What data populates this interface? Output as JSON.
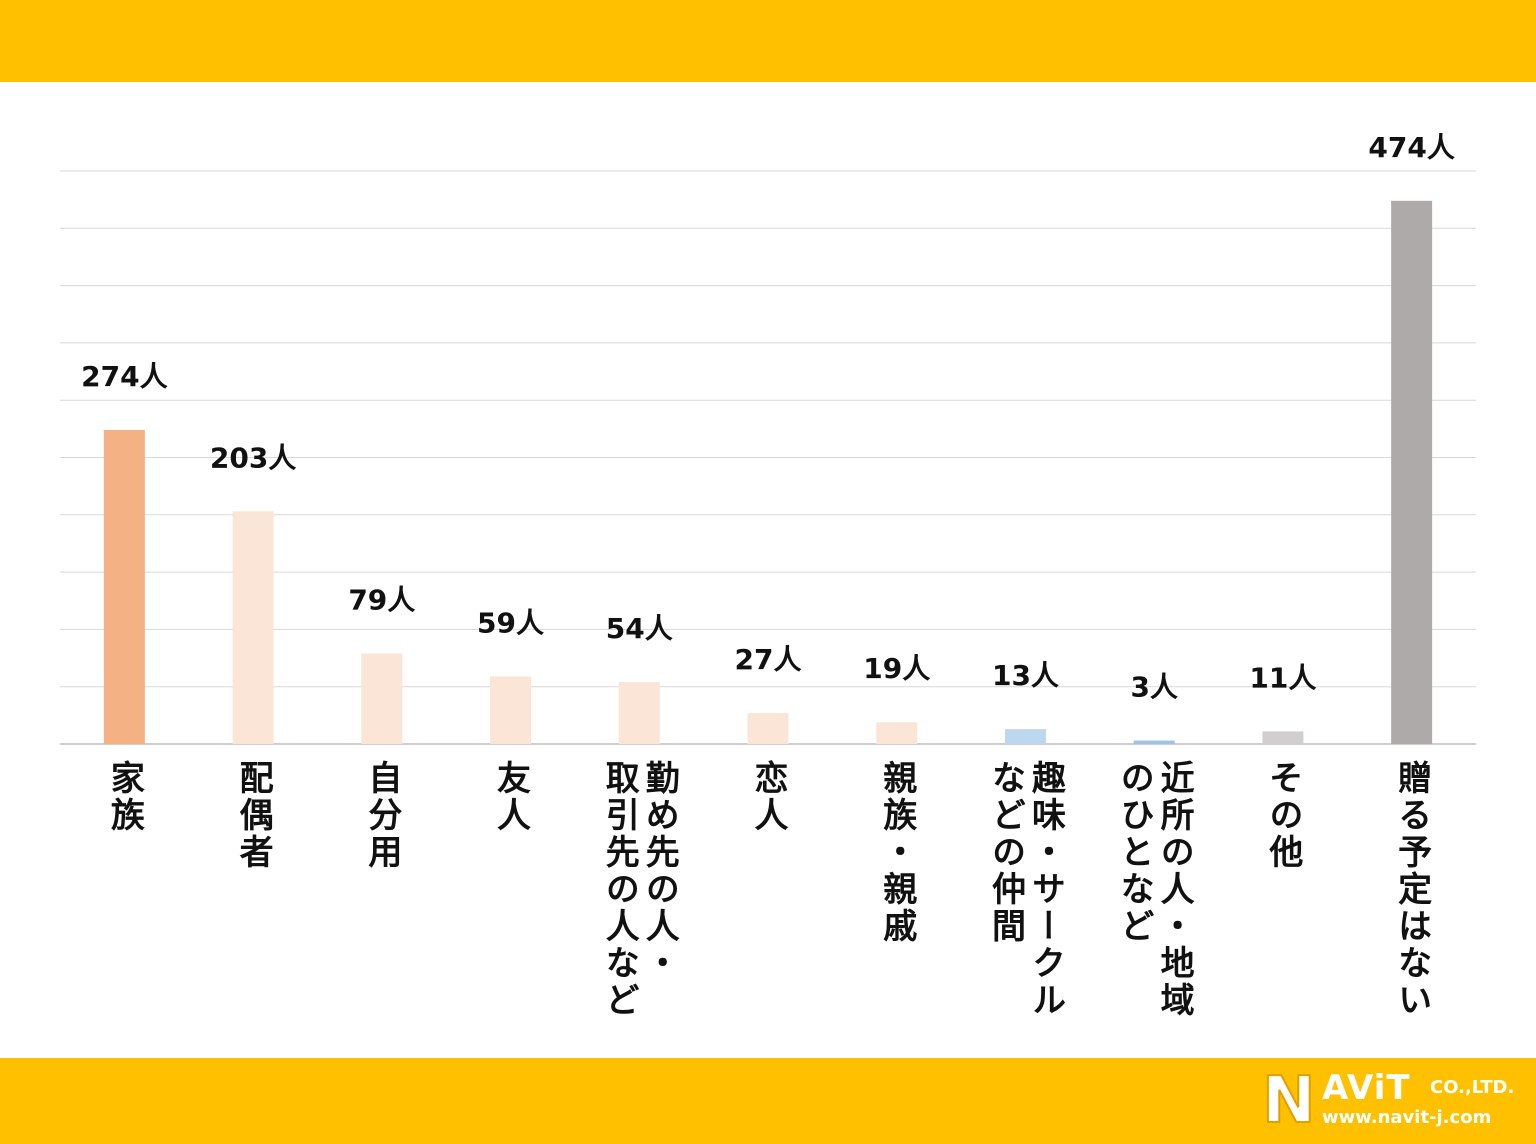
{
  "colors": {
    "band": "#FFC000",
    "grid": "#D9D9D9",
    "axis": "#BFBFBF"
  },
  "logo": {
    "letter": "N",
    "rest": "AViT",
    "company": "CO.,LTD.",
    "url": "www.navit-j.com"
  },
  "chart_data": {
    "type": "bar",
    "title": "",
    "xlabel": "",
    "ylabel": "",
    "ylim": [
      0,
      500
    ],
    "grid": true,
    "legend": "none",
    "unit": "人",
    "categories": [
      "家族",
      "配偶者",
      "自分用",
      "友人",
      "勤め先の人・\n取引先の人など",
      "恋人",
      "親族・親戚",
      "趣味・サークル\nなどの仲間",
      "近所の人・地域\nのひとなど",
      "その他",
      "贈る予定はない"
    ],
    "values": [
      274,
      203,
      79,
      59,
      54,
      27,
      19,
      13,
      3,
      11,
      474
    ],
    "value_labels": [
      "274人",
      "203人",
      "79人",
      "59人",
      "54人",
      "27人",
      "19人",
      "13人",
      "3人",
      "11人",
      "474人"
    ],
    "bar_colors": [
      "#F4B183",
      "#FBE5D6",
      "#FBE5D6",
      "#FBE5D6",
      "#FBE5D6",
      "#FBE5D6",
      "#FBE5D6",
      "#BDD7EE",
      "#9DC3E6",
      "#D0CECE",
      "#AEAAAA"
    ]
  }
}
